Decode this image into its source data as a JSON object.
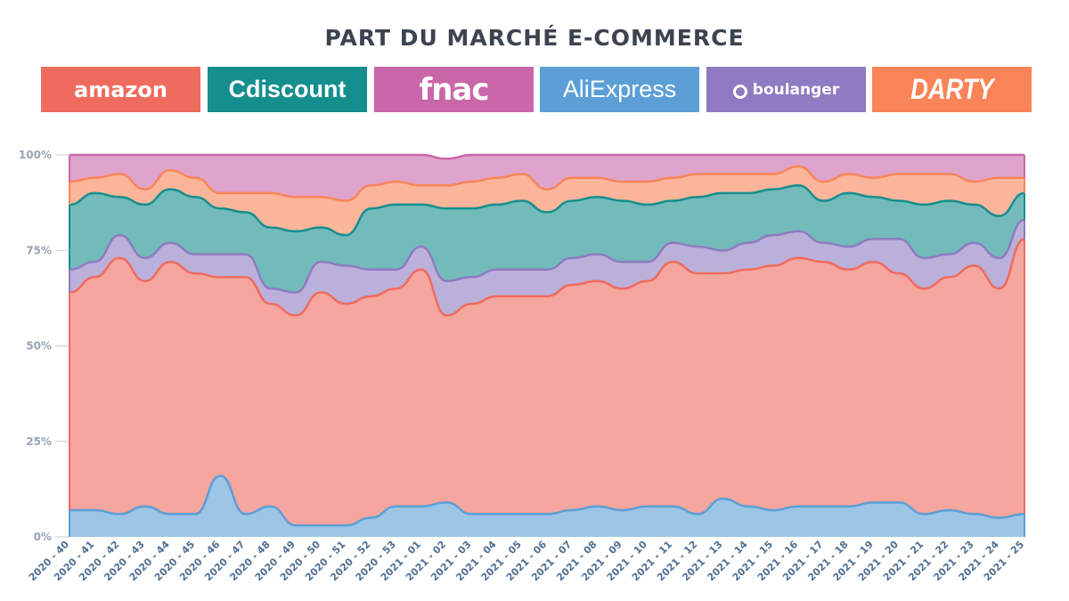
{
  "chart_data": {
    "type": "area",
    "stacked": true,
    "normalized": true,
    "title": "PART DU MARCHÉ E-COMMERCE",
    "ylim": [
      0,
      100
    ],
    "ytick_labels": [
      "0%",
      "25%",
      "50%",
      "75%",
      "100%"
    ],
    "grid": false,
    "legend_position": "top",
    "categories": [
      "2020 - 40",
      "2020 - 41",
      "2020 - 42",
      "2020 - 43",
      "2020 - 44",
      "2020 - 45",
      "2020 - 46",
      "2020 - 47",
      "2020 - 48",
      "2020 - 49",
      "2020 - 50",
      "2020 - 51",
      "2020 - 52",
      "2020 - 53",
      "2021 - 01",
      "2021 - 02",
      "2021 - 03",
      "2021 - 04",
      "2021 - 05",
      "2021 - 06",
      "2021 - 07",
      "2021 - 08",
      "2021 - 09",
      "2021 - 10",
      "2021 - 11",
      "2021 - 12",
      "2021 - 13",
      "2021 - 14",
      "2021 - 15",
      "2021 - 16",
      "2021 - 17",
      "2021 - 18",
      "2021 - 19",
      "2021 - 20",
      "2021 - 21",
      "2021 - 22",
      "2021 - 23",
      "2021 - 24",
      "2021 - 25"
    ],
    "series": [
      {
        "name": "AliExpress",
        "color": "#5b9fd6",
        "values": [
          7,
          7,
          6,
          8,
          6,
          6,
          16,
          6,
          8,
          3,
          3,
          3,
          5,
          8,
          8,
          9,
          6,
          6,
          6,
          6,
          7,
          8,
          7,
          8,
          8,
          6,
          10,
          8,
          7,
          8,
          8,
          8,
          9,
          9,
          6,
          7,
          6,
          5,
          6
        ]
      },
      {
        "name": "amazon",
        "color": "#ef6b5e",
        "values": [
          57,
          61,
          67,
          59,
          66,
          63,
          52,
          62,
          53,
          55,
          61,
          58,
          58,
          57,
          62,
          49,
          55,
          57,
          57,
          57,
          59,
          59,
          58,
          59,
          64,
          63,
          59,
          62,
          64,
          65,
          64,
          62,
          63,
          60,
          59,
          61,
          65,
          60,
          72
        ]
      },
      {
        "name": "boulanger",
        "color": "#8e7bc1",
        "values": [
          6,
          4,
          6,
          6,
          5,
          5,
          6,
          6,
          4,
          6,
          8,
          10,
          7,
          5,
          6,
          9,
          7,
          7,
          7,
          7,
          7,
          7,
          7,
          5,
          5,
          7,
          6,
          7,
          8,
          7,
          5,
          6,
          6,
          9,
          8,
          6,
          6,
          8,
          5
        ]
      },
      {
        "name": "Cdiscount",
        "color": "#158e8e",
        "values": [
          17,
          18,
          10,
          14,
          14,
          15,
          12,
          11,
          16,
          16,
          9,
          8,
          16,
          17,
          11,
          19,
          18,
          17,
          18,
          15,
          15,
          15,
          16,
          15,
          11,
          13,
          15,
          13,
          12,
          12,
          11,
          14,
          11,
          10,
          14,
          14,
          10,
          11,
          7
        ]
      },
      {
        "name": "DARTY",
        "color": "#f98457",
        "values": [
          6,
          4,
          6,
          4,
          5,
          5,
          4,
          5,
          9,
          9,
          8,
          9,
          6,
          6,
          5,
          6,
          7,
          7,
          7,
          6,
          6,
          5,
          5,
          6,
          6,
          6,
          5,
          5,
          4,
          5,
          5,
          5,
          5,
          7,
          8,
          7,
          6,
          10,
          4
        ]
      },
      {
        "name": "fnac",
        "color": "#c967a9",
        "values": [
          7,
          6,
          5,
          9,
          4,
          6,
          10,
          10,
          10,
          11,
          11,
          12,
          8,
          7,
          8,
          7,
          7,
          6,
          5,
          9,
          6,
          6,
          7,
          7,
          6,
          5,
          5,
          5,
          5,
          3,
          7,
          5,
          6,
          5,
          5,
          5,
          7,
          6,
          6
        ]
      }
    ]
  },
  "legend": [
    {
      "key": "amazon",
      "text": "amazon",
      "bg": "#ef6b5e"
    },
    {
      "key": "cdiscount",
      "text": "Cdiscount",
      "bg": "#158e8e"
    },
    {
      "key": "fnac",
      "text": "fnac",
      "bg": "#c967a9"
    },
    {
      "key": "aliexpress",
      "text": "AliExpress",
      "bg": "#5b9fd6"
    },
    {
      "key": "boulanger",
      "text": "boulanger",
      "bg": "#8e7bc1"
    },
    {
      "key": "darty",
      "text": "DARTY",
      "bg": "#f98457"
    }
  ]
}
